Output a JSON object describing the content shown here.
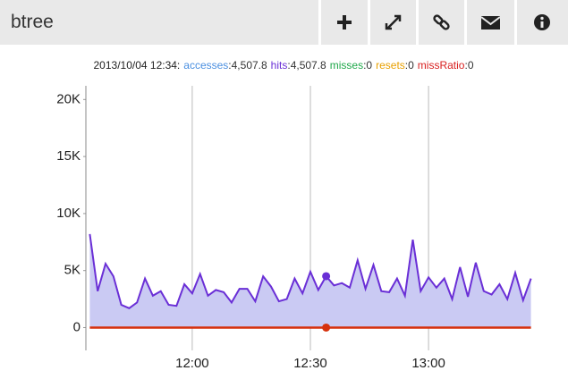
{
  "header": {
    "title": "btree"
  },
  "chart_data": {
    "type": "area",
    "readout": {
      "time": "2013/10/04 12:34:",
      "items": [
        {
          "name": "accesses",
          "color": "#4a8fe0",
          "value": 4507.8,
          "label": ":4,507.8"
        },
        {
          "name": "hits",
          "color": "#6a2fd6",
          "value": 4507.8,
          "label": ":4,507.8"
        },
        {
          "name": "misses",
          "color": "#1fa84a",
          "value": 0,
          "label": ":0"
        },
        {
          "name": "resets",
          "color": "#e8a000",
          "value": 0,
          "label": ":0"
        },
        {
          "name": "missRatio",
          "color": "#d81e1e",
          "value": 0,
          "label": ":0"
        }
      ]
    },
    "x": [
      "11:34",
      "11:36",
      "11:38",
      "11:40",
      "11:42",
      "11:44",
      "11:46",
      "11:48",
      "11:50",
      "11:52",
      "11:54",
      "11:56",
      "11:58",
      "12:00",
      "12:02",
      "12:04",
      "12:06",
      "12:08",
      "12:10",
      "12:12",
      "12:14",
      "12:16",
      "12:18",
      "12:20",
      "12:22",
      "12:24",
      "12:26",
      "12:28",
      "12:30",
      "12:32",
      "12:34",
      "12:36",
      "12:38",
      "12:40",
      "12:42",
      "12:44",
      "12:46",
      "12:48",
      "12:50",
      "12:52",
      "12:54",
      "12:56",
      "12:58",
      "13:00",
      "13:02",
      "13:04",
      "13:06",
      "13:08",
      "13:10",
      "13:12",
      "13:14",
      "13:16",
      "13:18",
      "13:20",
      "13:22",
      "13:24",
      "13:26"
    ],
    "series": [
      {
        "name": "hits",
        "color": "#6a2fd6",
        "fill": "#cacaf3",
        "values": [
          8200,
          3200,
          5600,
          4500,
          2000,
          1700,
          2200,
          4300,
          2800,
          3200,
          2000,
          1900,
          3800,
          3000,
          4700,
          2800,
          3300,
          3100,
          2200,
          3400,
          3400,
          2300,
          4500,
          3600,
          2300,
          2500,
          4300,
          3000,
          4900,
          3300,
          4507.8,
          3700,
          3900,
          3500,
          5900,
          3400,
          5500,
          3200,
          3100,
          4300,
          2800,
          7700,
          3200,
          4400,
          3500,
          4300,
          2500,
          5300,
          2700,
          5700,
          3200,
          2900,
          3800,
          2500,
          4800,
          2400,
          4300
        ]
      },
      {
        "name": "misses",
        "color": "#d6300c",
        "values": [
          0,
          0,
          0,
          0,
          0,
          0,
          0,
          0,
          0,
          0,
          0,
          0,
          0,
          0,
          0,
          0,
          0,
          0,
          0,
          0,
          0,
          0,
          0,
          0,
          0,
          0,
          0,
          0,
          0,
          0,
          0,
          0,
          0,
          0,
          0,
          0,
          0,
          0,
          0,
          0,
          0,
          0,
          0,
          0,
          0,
          0,
          0,
          0,
          0,
          0,
          0,
          0,
          0,
          0,
          0,
          0,
          0
        ]
      }
    ],
    "highlight_x": "12:34",
    "xlim": [
      "11:33",
      "13:27"
    ],
    "xticks": [
      "12:00",
      "12:30",
      "13:00"
    ],
    "ylim": [
      -2000,
      21200
    ],
    "yticks": [
      0,
      {
        "value": 5000,
        "label": "5K"
      },
      {
        "value": 10000,
        "label": "10K"
      },
      {
        "value": 15000,
        "label": "15K"
      },
      {
        "value": 20000,
        "label": "20K"
      }
    ],
    "grid": "x"
  }
}
